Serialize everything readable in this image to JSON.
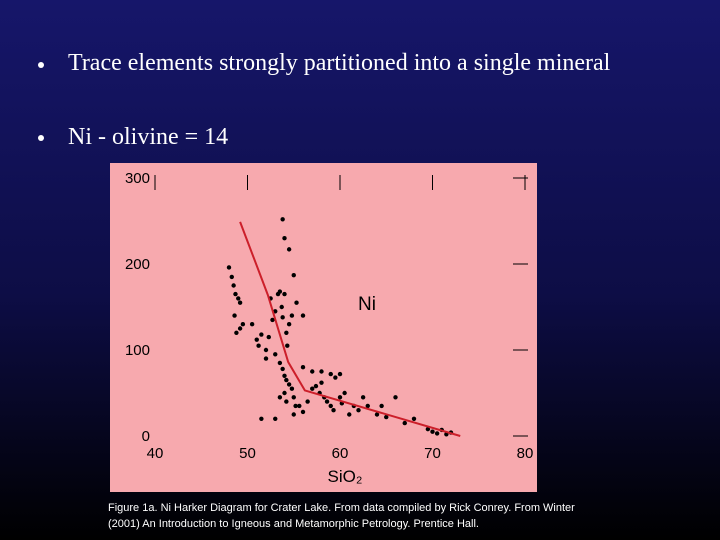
{
  "bullets": [
    "Trace elements strongly partitioned into a single mineral",
    "Ni - olivine = 14"
  ],
  "caption": "Figure 1a. Ni Harker Diagram for Crater Lake. From data compiled by Rick Conrey. From Winter (2001) An Introduction to Igneous and Metamorphic Petrology. Prentice Hall.",
  "chart_data": {
    "type": "scatter",
    "annotation": "Ni",
    "x_label": "SiO₂",
    "xlim": [
      40,
      80
    ],
    "xticks": [
      40,
      50,
      60,
      70,
      80
    ],
    "ylim": [
      0,
      300
    ],
    "yticks": [
      0,
      100,
      200,
      300
    ],
    "background": "#f7a9ae",
    "series": [
      {
        "color": "#000000",
        "x": [
          48,
          48.3,
          48.5,
          48.7,
          49,
          49.2,
          48.6,
          49.5,
          49.2,
          48.8,
          50.5,
          51,
          51.5,
          51.2,
          52,
          52.3,
          52.7,
          52.5,
          53,
          53.3,
          53.5,
          53.7,
          53.8,
          54,
          54,
          54.2,
          54.5,
          54.8,
          54.3,
          53,
          53.5,
          53.8,
          54,
          54.2,
          54.5,
          54.8,
          54,
          53.5,
          54.2,
          55,
          55.2,
          55.6,
          56,
          56.5,
          57,
          57.4,
          57.8,
          58,
          58.3,
          58.6,
          59,
          59.3,
          60,
          60.2,
          60.5,
          61,
          61.5,
          62,
          62.5,
          63,
          64,
          64.5,
          65,
          66,
          67,
          68,
          69.5,
          70,
          70.5,
          71,
          71.5,
          72,
          53.8,
          54.5,
          55,
          55.3,
          56,
          57,
          56,
          58,
          59,
          59.5,
          60,
          52,
          51.5,
          55,
          53
        ],
        "values": [
          196,
          185,
          175,
          165,
          160,
          155,
          140,
          130,
          125,
          120,
          130,
          112,
          118,
          105,
          100,
          115,
          135,
          160,
          145,
          165,
          168,
          150,
          138,
          230,
          165,
          120,
          130,
          140,
          105,
          95,
          85,
          78,
          70,
          65,
          60,
          55,
          50,
          45,
          40,
          45,
          35,
          35,
          28,
          40,
          55,
          58,
          50,
          62,
          45,
          40,
          35,
          30,
          45,
          38,
          50,
          25,
          35,
          30,
          45,
          35,
          25,
          35,
          22,
          45,
          15,
          20,
          8,
          5,
          3,
          7,
          2,
          4,
          252,
          217,
          187,
          155,
          140,
          75,
          80,
          75,
          72,
          68,
          72,
          90,
          20,
          25,
          20
        ]
      }
    ],
    "trend": {
      "color": "#cc1f2a",
      "x": [
        49.2,
        52.2,
        54.4,
        56.2,
        73
      ],
      "values": [
        249,
        164,
        86,
        53,
        0
      ]
    }
  }
}
